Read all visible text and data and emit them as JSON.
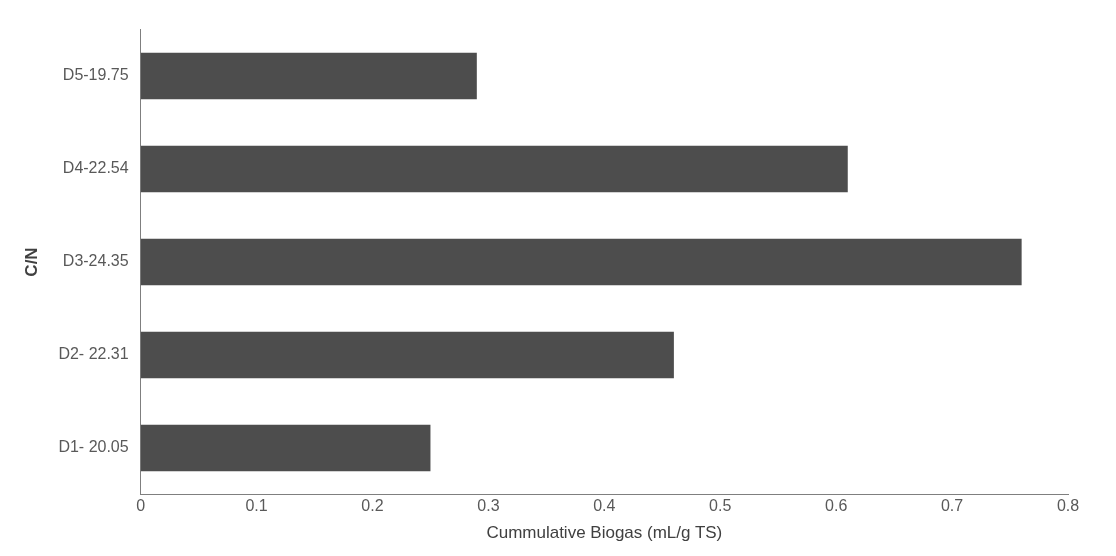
{
  "chart_data": {
    "type": "bar",
    "orientation": "horizontal",
    "xlabel": "Cummulative Biogas (mL/g TS)",
    "ylabel": "C/N",
    "categories": [
      "D5-19.75",
      "D4-22.54",
      "D3-24.35",
      "D2- 22.31",
      "D1- 20.05"
    ],
    "values": [
      0.29,
      0.61,
      0.76,
      0.46,
      0.25
    ],
    "color": "#4d4d4d",
    "xlim": [
      0,
      0.8
    ],
    "xticks": [
      0,
      0.1,
      0.2,
      0.3,
      0.4,
      0.5,
      0.6,
      0.7,
      0.8
    ],
    "grid": false,
    "legend": false
  }
}
